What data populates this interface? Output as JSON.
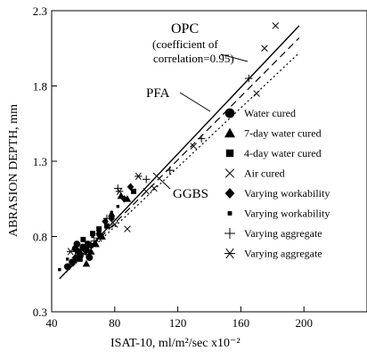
{
  "chart_data": {
    "type": "scatter",
    "xlabel": "ISAT-10,  ml/m²/sec x10⁻²",
    "ylabel": "ABRASION DEPTH, mm",
    "xlim": [
      40,
      240
    ],
    "ylim": [
      0.3,
      2.3
    ],
    "x_ticks": [
      "40",
      "80",
      "120",
      "160",
      "200"
    ],
    "x_tick_values": [
      40,
      80,
      120,
      160,
      200
    ],
    "y_ticks": [
      "0.3",
      "0.8",
      "1.3",
      "1.8",
      "2.3"
    ],
    "y_tick_values": [
      0.3,
      0.8,
      1.3,
      1.8,
      2.3
    ],
    "grid": false,
    "legend_position": "right",
    "legend": [
      {
        "label": "Water cured",
        "marker": "circle"
      },
      {
        "label": "7-day water cured",
        "marker": "triangle"
      },
      {
        "label": "4-day water cured",
        "marker": "square"
      },
      {
        "label": "Air cured",
        "marker": "x"
      },
      {
        "label": "Varying workability",
        "marker": "diamond"
      },
      {
        "label": "Varying workability",
        "marker": "small-square"
      },
      {
        "label": "Varying aggregate",
        "marker": "plus"
      },
      {
        "label": "Varying aggregate",
        "marker": "asterisk"
      }
    ],
    "lines": [
      {
        "label": "OPC",
        "style": "solid",
        "x": [
          45,
          197
        ],
        "y": [
          0.52,
          2.2
        ]
      },
      {
        "label": "PFA",
        "style": "dashed",
        "x": [
          45,
          197
        ],
        "y": [
          0.52,
          2.12
        ]
      },
      {
        "label": "GGBS",
        "style": "dotted",
        "x": [
          45,
          197
        ],
        "y": [
          0.52,
          2.02
        ]
      }
    ],
    "annotations": {
      "opc_label": "OPC",
      "opc_note_1": "(coefficient of",
      "opc_note_2": "correlation=0.95)",
      "pfa_label": "PFA",
      "ggbs_label": "GGBS"
    },
    "series": [
      {
        "marker": "circle",
        "x": [
          50,
          53,
          55,
          56,
          57,
          58,
          60,
          62,
          63,
          64
        ],
        "y": [
          0.6,
          0.63,
          0.72,
          0.75,
          0.7,
          0.68,
          0.73,
          0.71,
          0.75,
          0.66
        ]
      },
      {
        "marker": "triangle",
        "x": [
          62,
          65,
          68,
          72,
          78,
          84,
          88
        ],
        "y": [
          0.62,
          0.7,
          0.75,
          0.8,
          0.95,
          1.07,
          1.05
        ]
      },
      {
        "marker": "square",
        "x": [
          58,
          60,
          66,
          70,
          75,
          92
        ],
        "y": [
          0.65,
          0.78,
          0.82,
          0.85,
          0.87,
          1.1
        ]
      },
      {
        "marker": "x",
        "x": [
          80,
          88,
          100,
          105,
          130,
          170,
          175,
          182
        ],
        "y": [
          0.88,
          0.85,
          1.1,
          1.12,
          1.4,
          1.75,
          2.05,
          2.2
        ]
      },
      {
        "marker": "diamond",
        "x": [
          55,
          60,
          65,
          70,
          74,
          78,
          86,
          90
        ],
        "y": [
          0.66,
          0.72,
          0.74,
          0.82,
          0.9,
          0.92,
          1.05,
          1.13
        ]
      },
      {
        "marker": "small-square",
        "x": [
          45,
          50,
          54,
          58,
          62,
          66,
          70,
          74,
          78,
          82
        ],
        "y": [
          0.58,
          0.65,
          0.62,
          0.7,
          0.76,
          0.8,
          0.84,
          0.9,
          0.96,
          1.0
        ]
      },
      {
        "marker": "plus",
        "x": [
          55,
          62,
          67,
          75,
          82,
          100,
          115,
          135,
          165
        ],
        "y": [
          0.7,
          0.68,
          0.77,
          0.92,
          1.12,
          1.18,
          1.24,
          1.45,
          1.85
        ]
      },
      {
        "marker": "asterisk",
        "x": [
          52,
          60,
          70,
          83,
          95
        ],
        "y": [
          0.7,
          0.73,
          0.79,
          1.1,
          1.2
        ]
      }
    ]
  }
}
